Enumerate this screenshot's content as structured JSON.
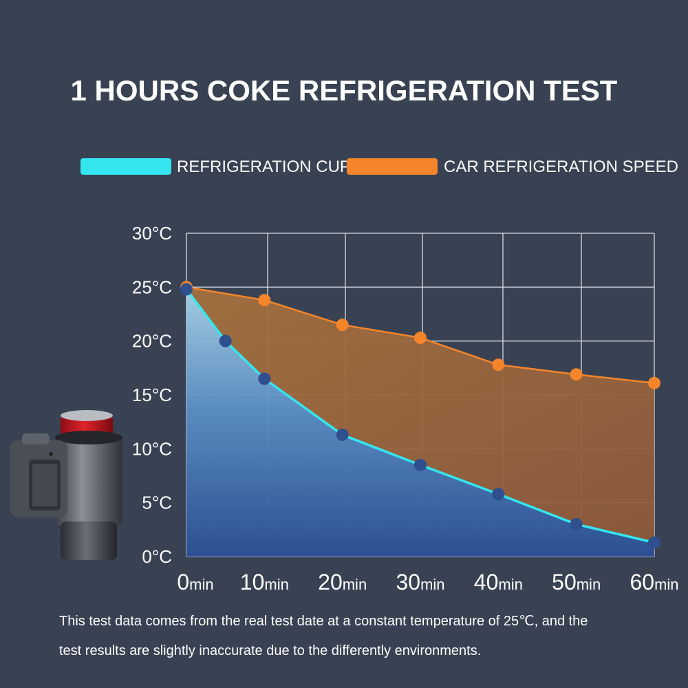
{
  "title": "1 HOURS COKE REFRIGERATION TEST",
  "legend": [
    {
      "label": "REFRIGERATION CUP",
      "color": "#33e6f0"
    },
    {
      "label": "CAR REFRIGERATION SPEED",
      "color": "#f5852b"
    }
  ],
  "chart_data": {
    "type": "area",
    "title": "1 HOURS COKE REFRIGERATION TEST",
    "x_ticks": [
      {
        "num": "0",
        "unit": "min",
        "value": 0
      },
      {
        "num": "10",
        "unit": "min",
        "value": 10
      },
      {
        "num": "20",
        "unit": "min",
        "value": 20
      },
      {
        "num": "30",
        "unit": "min",
        "value": 30
      },
      {
        "num": "40",
        "unit": "min",
        "value": 40
      },
      {
        "num": "50",
        "unit": "min",
        "value": 50
      },
      {
        "num": "60",
        "unit": "min",
        "value": 60
      }
    ],
    "y_ticks": [
      {
        "label": "0°C",
        "value": 0
      },
      {
        "label": "5°C",
        "value": 5
      },
      {
        "label": "10°C",
        "value": 10
      },
      {
        "label": "15°C",
        "value": 15
      },
      {
        "label": "20°C",
        "value": 20
      },
      {
        "label": "25°C",
        "value": 25
      },
      {
        "label": "30°C",
        "value": 30
      }
    ],
    "xlim": [
      0,
      60
    ],
    "ylim": [
      0,
      30
    ],
    "grid": true,
    "legend_position": "top",
    "series": [
      {
        "name": "REFRIGERATION CUP",
        "color": "#33e6f0",
        "marker_color": "#2f4f8f",
        "points": [
          {
            "x": 0,
            "y": 24.8
          },
          {
            "x": 5,
            "y": 20
          },
          {
            "x": 10,
            "y": 16.5
          },
          {
            "x": 20,
            "y": 11.3
          },
          {
            "x": 30,
            "y": 8.5
          },
          {
            "x": 40,
            "y": 5.8
          },
          {
            "x": 50,
            "y": 3
          },
          {
            "x": 60,
            "y": 1.3
          }
        ]
      },
      {
        "name": "CAR REFRIGERATION SPEED",
        "color": "#f5852b",
        "marker_color": "#f5852b",
        "points": [
          {
            "x": 0,
            "y": 25
          },
          {
            "x": 10,
            "y": 23.8
          },
          {
            "x": 20,
            "y": 21.5
          },
          {
            "x": 30,
            "y": 20.3
          },
          {
            "x": 40,
            "y": 17.8
          },
          {
            "x": 50,
            "y": 16.9
          },
          {
            "x": 60,
            "y": 16.1
          }
        ]
      }
    ]
  },
  "footnote": {
    "line1": "This test data comes from the real test date at a constant temperature of 25℃, and  the",
    "line2": "test results are slightly inaccurate due to the differently environments."
  }
}
